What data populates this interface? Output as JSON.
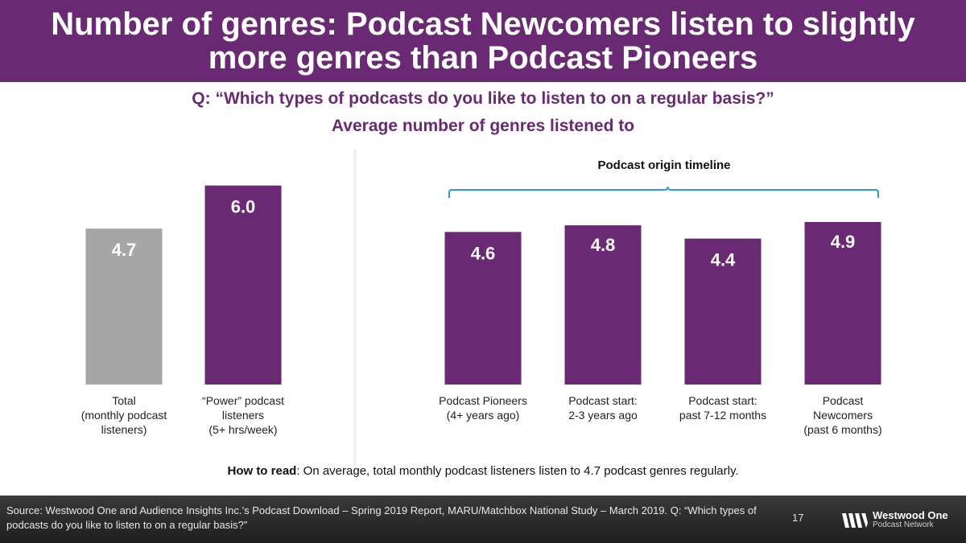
{
  "title": "Number of genres: Podcast Newcomers listen to slightly more genres than Podcast Pioneers",
  "question": "Q: “Which types of podcasts do you like to listen to on a regular basis?”",
  "subtitle": "Average number of genres listened to",
  "chart_data": {
    "type": "bar",
    "title": "Average number of genres listened to",
    "ylim": [
      0,
      6.5
    ],
    "bracket_label": "Podcast origin timeline",
    "categories": [
      "Total\n(monthly podcast\nlisteners)",
      "“Power” podcast\nlisteners\n(5+ hrs/week)",
      "Podcast Pioneers\n(4+ years ago)",
      "Podcast start:\n2-3 years ago",
      "Podcast start:\npast 7-12 months",
      "Podcast\nNewcomers\n(past 6 months)"
    ],
    "values": [
      4.7,
      6.0,
      4.6,
      4.8,
      4.4,
      4.9
    ],
    "value_labels": [
      "4.7",
      "6.0",
      "4.6",
      "4.8",
      "4.4",
      "4.9"
    ],
    "colors": [
      "#a6a6a6",
      "#6a2a73",
      "#6a2a73",
      "#6a2a73",
      "#6a2a73",
      "#6a2a73"
    ]
  },
  "how_to_read": {
    "label": "How to read",
    "text": ": On average, total monthly podcast listeners listen to 4.7 podcast genres regularly."
  },
  "footer": {
    "source": "Source: Westwood One and Audience Insights Inc.’s Podcast Download – Spring 2019 Report, MARU/Matchbox National Study – March 2019. Q: “Which types of podcasts do you like to listen to on a regular basis?”",
    "page": "17",
    "logo_name": "Westwood One",
    "logo_sub": "Podcast Network"
  },
  "colors": {
    "brand_purple": "#6a2a73",
    "gray_bar": "#a6a6a6",
    "bracket": "#2e9ad0"
  }
}
